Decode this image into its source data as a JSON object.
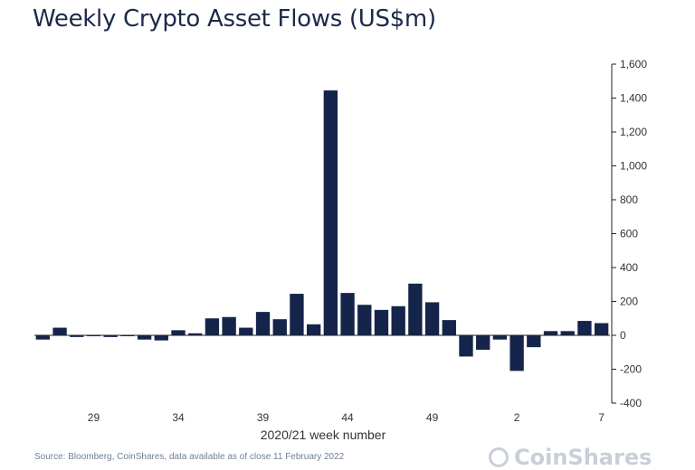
{
  "chart_data": {
    "type": "bar",
    "title": "Weekly Crypto Asset Flows (US$m)",
    "xlabel": "2020/21 week number",
    "ylabel": "",
    "ylim": [
      -400,
      1600
    ],
    "yticks": [
      1600,
      1400,
      1200,
      1000,
      800,
      600,
      400,
      200,
      0,
      -200,
      -400
    ],
    "ytick_labels": [
      "1,600",
      "1,400",
      "1,200",
      "1,000",
      "800",
      "600",
      "400",
      "200",
      "0",
      "-200",
      "-400"
    ],
    "xtick_labels": [
      {
        "label": "29",
        "index": 3
      },
      {
        "label": "34",
        "index": 8
      },
      {
        "label": "39",
        "index": 13
      },
      {
        "label": "44",
        "index": 18
      },
      {
        "label": "49",
        "index": 23
      },
      {
        "label": "2",
        "index": 28
      },
      {
        "label": "7",
        "index": 33
      }
    ],
    "values": [
      -25,
      45,
      -10,
      -5,
      -10,
      0,
      -25,
      -30,
      30,
      12,
      100,
      108,
      45,
      138,
      95,
      245,
      65,
      1445,
      250,
      180,
      150,
      172,
      305,
      195,
      90,
      -125,
      -85,
      -25,
      -210,
      -70,
      25,
      25,
      85,
      72
    ],
    "bar_color": "#15244a",
    "grid": false,
    "y_axis_position": "right"
  },
  "footer": {
    "source": "Source: Bloomberg, CoinShares, data available as of close 11 February 2022",
    "watermark": "CoinShares"
  }
}
